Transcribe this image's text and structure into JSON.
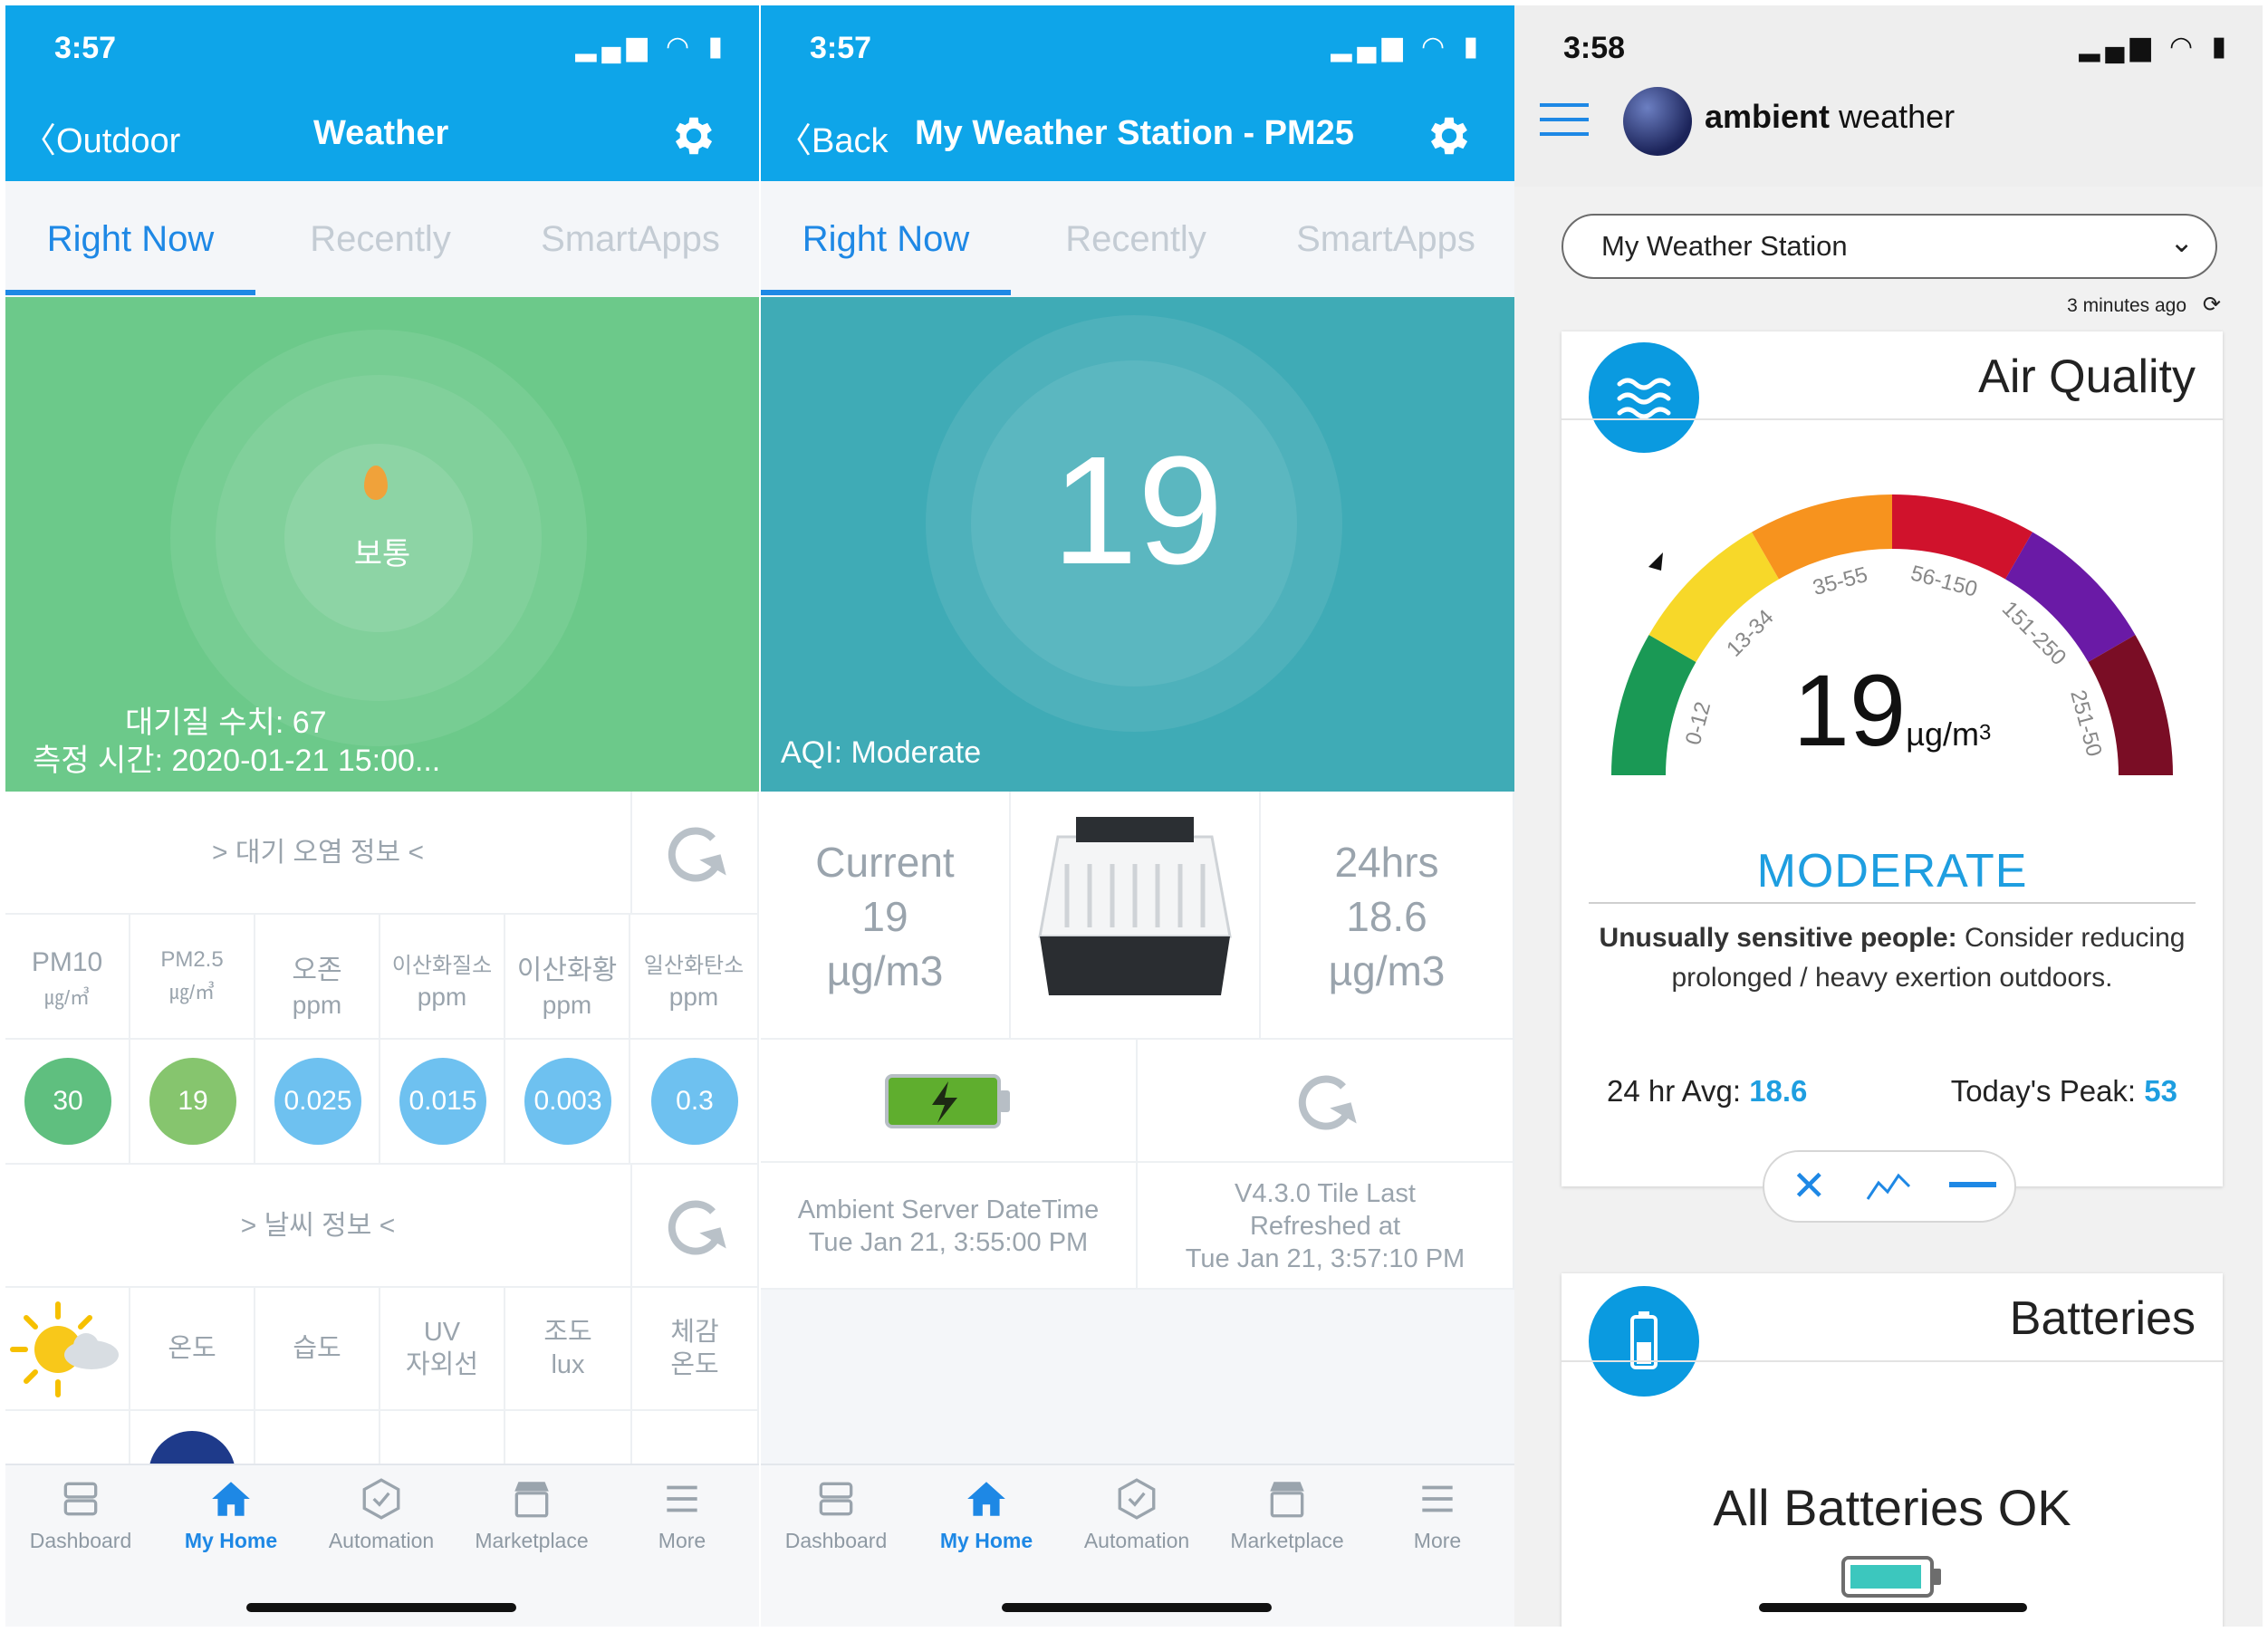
{
  "panel1": {
    "time": "3:57",
    "back_label": "Outdoor",
    "title": "Weather",
    "tabs": [
      "Right Now",
      "Recently",
      "SmartApps"
    ],
    "hero": {
      "status": "보통",
      "aqi_line": "대기질 수치: 67",
      "time_line": "측정 시간: 2020-01-21 15:00..."
    },
    "pollution_header": "> 대기 오염 정보 <",
    "pollutants": [
      {
        "name": "PM10",
        "unit": "㎍/㎥",
        "value": "30",
        "color": "#5fbf7f"
      },
      {
        "name": "PM2.5",
        "unit": "㎍/㎥",
        "value": "19",
        "color": "#86c56e"
      },
      {
        "name": "오존",
        "unit": "ppm",
        "value": "0.025",
        "color": "#6ec1f0"
      },
      {
        "name": "이산화질소",
        "unit": "ppm",
        "value": "0.015",
        "color": "#6ec1f0"
      },
      {
        "name": "이산화황",
        "unit": "ppm",
        "value": "0.003",
        "color": "#6ec1f0"
      },
      {
        "name": "일산화탄소",
        "unit": "ppm",
        "value": "0.3",
        "color": "#6ec1f0"
      }
    ],
    "weather_header": "> 날씨 정보 <",
    "weather_labels": [
      "온도",
      "습도",
      "UV\n자외선",
      "조도\nlux",
      "체감\n온도"
    ]
  },
  "panel2": {
    "time": "3:57",
    "back_label": "Back",
    "title": "My Weather Station - PM25",
    "tabs": [
      "Right Now",
      "Recently",
      "SmartApps"
    ],
    "big_value": "19",
    "aqi_label": "AQI: Moderate",
    "current": {
      "label": "Current",
      "value": "19",
      "unit": "µg/m3"
    },
    "avg24": {
      "label": "24hrs",
      "value": "18.6",
      "unit": "µg/m3"
    },
    "server_time": {
      "label": "Ambient Server DateTime",
      "value": "Tue Jan 21, 3:55:00 PM"
    },
    "refreshed": {
      "line1": "V4.3.0 Tile Last",
      "line2": "Refreshed at",
      "line3": "Tue Jan 21, 3:57:10 PM"
    }
  },
  "bottom_nav": [
    "Dashboard",
    "My Home",
    "Automation",
    "Marketplace",
    "More"
  ],
  "panel3": {
    "time": "3:58",
    "brand_bold": "ambient",
    "brand_light": "weather",
    "station": "My Weather Station",
    "updated": "3 minutes ago",
    "aq_title": "Air Quality",
    "gauge_ranges": [
      "0-12",
      "13-34",
      "35-55",
      "56-150",
      "151-250",
      "251-50"
    ],
    "gauge_value": "19",
    "gauge_unit": "µg/m",
    "gauge_unit_sup": "3",
    "category": "MODERATE",
    "advice_bold": "Unusually sensitive people:",
    "advice_rest": " Consider reducing prolonged / heavy exertion outdoors.",
    "avg_label": "24 hr Avg:",
    "avg_value": "18.6",
    "peak_label": "Today's Peak:",
    "peak_value": "53",
    "batteries_title": "Batteries",
    "batteries_status": "All Batteries OK"
  },
  "colors": {
    "nav_blue": "#0ea5e9",
    "hero_green": "#6cc98a",
    "hero_teal": "#3fabb6",
    "accent_blue": "#1e88e5",
    "gauge": [
      "#1a9955",
      "#f7d829",
      "#f7931e",
      "#d0122c",
      "#6a1aa6",
      "#7a0d25"
    ]
  }
}
